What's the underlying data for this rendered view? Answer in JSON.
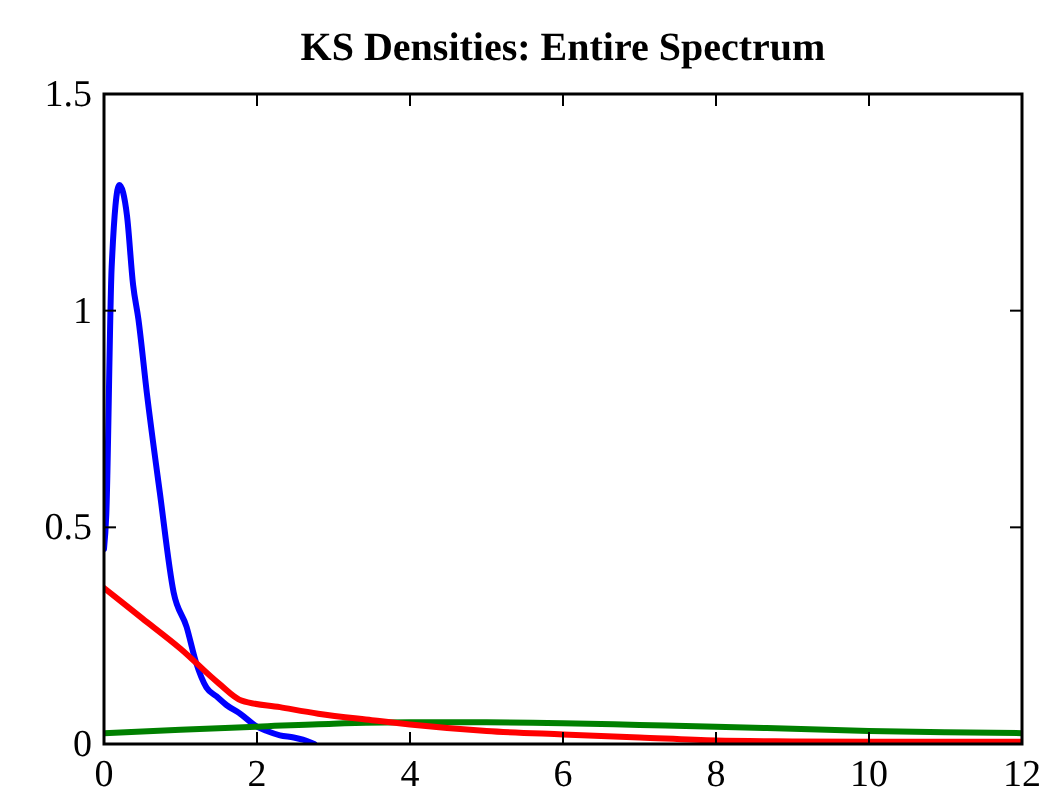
{
  "chart_data": {
    "type": "line",
    "title": "KS Densities: Entire Spectrum",
    "xlim": [
      0,
      12
    ],
    "xticks": [
      0,
      2,
      4,
      6,
      8,
      10,
      12
    ],
    "ylim": [
      0,
      1.5
    ],
    "yticks": [
      0,
      0.5,
      1,
      1.5
    ],
    "grid": false,
    "line_style": "solid",
    "series": [
      {
        "color": "#0000ff",
        "x": [
          0,
          0.03,
          0.1,
          0.2,
          0.3,
          0.38,
          0.45,
          0.56,
          0.73,
          0.91,
          1.08,
          1.2,
          1.34,
          1.47,
          1.6,
          1.78,
          2.0,
          2.13,
          2.3,
          2.48,
          2.6,
          2.75
        ],
        "values": [
          0.45,
          0.53,
          1.1,
          1.29,
          1.22,
          1.06,
          0.98,
          0.81,
          0.58,
          0.35,
          0.27,
          0.19,
          0.13,
          0.11,
          0.09,
          0.07,
          0.04,
          0.03,
          0.02,
          0.015,
          0.01,
          0
        ]
      },
      {
        "color": "#008000",
        "x": [
          0,
          1,
          2,
          3,
          4,
          5,
          6,
          7,
          8,
          9,
          10,
          11,
          12
        ],
        "values": [
          0.025,
          0.033,
          0.04,
          0.047,
          0.05,
          0.05,
          0.048,
          0.044,
          0.04,
          0.035,
          0.03,
          0.027,
          0.025
        ]
      },
      {
        "color": "#ff0000",
        "x": [
          0,
          0.5,
          1,
          1.5,
          1.8,
          2.3,
          2.8,
          3.5,
          4,
          5,
          6,
          7,
          8,
          9,
          10,
          11,
          12
        ],
        "values": [
          0.36,
          0.29,
          0.22,
          0.14,
          0.1,
          0.085,
          0.07,
          0.055,
          0.045,
          0.03,
          0.022,
          0.015,
          0.008,
          0.006,
          0.005,
          0.005,
          0.005
        ]
      }
    ]
  }
}
